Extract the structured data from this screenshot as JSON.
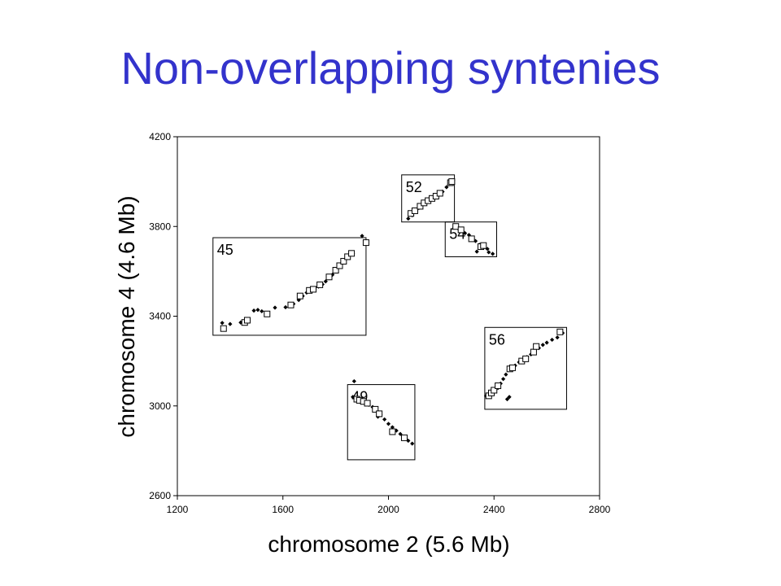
{
  "title": "Non-overlapping syntenies",
  "colors": {
    "title": "#3333cc",
    "axis": "#000000",
    "marker": "#000000"
  },
  "chart_data": {
    "type": "scatter",
    "xlabel": "chromosome 2 (5.6 Mb)",
    "ylabel": "chromosome 4 (4.6 Mb)",
    "xlim": [
      1200,
      2800
    ],
    "ylim": [
      2600,
      4200
    ],
    "xticks": [
      1200,
      1600,
      2000,
      2400,
      2800
    ],
    "yticks": [
      2600,
      3000,
      3400,
      3800,
      4200
    ],
    "grid": false,
    "legend": "none",
    "marker_styles": [
      "filled-diamond",
      "open-square"
    ],
    "blocks": [
      {
        "label": "45",
        "x_range": [
          1335,
          1915
        ],
        "y_range": [
          3315,
          3750
        ],
        "diamonds": [
          [
            1370,
            3370
          ],
          [
            1400,
            3365
          ],
          [
            1440,
            3372
          ],
          [
            1490,
            3425
          ],
          [
            1505,
            3428
          ],
          [
            1520,
            3422
          ],
          [
            1570,
            3438
          ],
          [
            1610,
            3440
          ],
          [
            1640,
            3455
          ],
          [
            1660,
            3472
          ],
          [
            1675,
            3490
          ],
          [
            1690,
            3505
          ],
          [
            1705,
            3515
          ],
          [
            1720,
            3520
          ],
          [
            1735,
            3532
          ],
          [
            1750,
            3542
          ],
          [
            1762,
            3555
          ],
          [
            1775,
            3570
          ],
          [
            1788,
            3585
          ],
          [
            1800,
            3605
          ],
          [
            1812,
            3622
          ],
          [
            1825,
            3640
          ],
          [
            1838,
            3655
          ],
          [
            1850,
            3668
          ],
          [
            1865,
            3680
          ],
          [
            1900,
            3758
          ]
        ],
        "squares": [
          [
            1375,
            3345
          ],
          [
            1455,
            3372
          ],
          [
            1465,
            3382
          ],
          [
            1540,
            3410
          ],
          [
            1630,
            3450
          ],
          [
            1665,
            3490
          ],
          [
            1700,
            3515
          ],
          [
            1715,
            3520
          ],
          [
            1740,
            3540
          ],
          [
            1775,
            3575
          ],
          [
            1800,
            3605
          ],
          [
            1815,
            3625
          ],
          [
            1830,
            3645
          ],
          [
            1845,
            3665
          ],
          [
            1860,
            3680
          ],
          [
            1915,
            3728
          ]
        ]
      },
      {
        "label": "52",
        "x_range": [
          2050,
          2250
        ],
        "y_range": [
          3820,
          4030
        ],
        "diamonds": [
          [
            2075,
            3835
          ],
          [
            2090,
            3850
          ],
          [
            2105,
            3868
          ],
          [
            2115,
            3882
          ],
          [
            2130,
            3898
          ],
          [
            2145,
            3912
          ],
          [
            2160,
            3920
          ],
          [
            2175,
            3930
          ],
          [
            2190,
            3940
          ],
          [
            2205,
            3955
          ],
          [
            2220,
            3975
          ],
          [
            2230,
            3988
          ],
          [
            2240,
            3995
          ],
          [
            2245,
            4005
          ]
        ],
        "squares": [
          [
            2085,
            3858
          ],
          [
            2100,
            3870
          ],
          [
            2120,
            3890
          ],
          [
            2135,
            3905
          ],
          [
            2150,
            3915
          ],
          [
            2165,
            3925
          ],
          [
            2180,
            3935
          ],
          [
            2195,
            3948
          ],
          [
            2235,
            3995
          ],
          [
            2240,
            4000
          ]
        ]
      },
      {
        "label": "54",
        "x_range": [
          2215,
          2410
        ],
        "y_range": [
          3665,
          3820
        ],
        "diamonds": [
          [
            2250,
            3795
          ],
          [
            2265,
            3790
          ],
          [
            2280,
            3780
          ],
          [
            2290,
            3770
          ],
          [
            2305,
            3762
          ],
          [
            2320,
            3745
          ],
          [
            2330,
            3735
          ],
          [
            2345,
            3718
          ],
          [
            2360,
            3705
          ],
          [
            2375,
            3700
          ],
          [
            2380,
            3685
          ],
          [
            2395,
            3678
          ],
          [
            2335,
            3688
          ]
        ],
        "squares": [
          [
            2255,
            3800
          ],
          [
            2275,
            3785
          ],
          [
            2315,
            3745
          ],
          [
            2350,
            3710
          ],
          [
            2360,
            3715
          ]
        ]
      },
      {
        "label": "56",
        "x_range": [
          2365,
          2675
        ],
        "y_range": [
          2985,
          3350
        ],
        "diamonds": [
          [
            2370,
            3045
          ],
          [
            2385,
            3050
          ],
          [
            2395,
            3060
          ],
          [
            2405,
            3070
          ],
          [
            2415,
            3080
          ],
          [
            2425,
            3100
          ],
          [
            2435,
            3120
          ],
          [
            2445,
            3140
          ],
          [
            2455,
            3160
          ],
          [
            2465,
            3175
          ],
          [
            2480,
            3180
          ],
          [
            2495,
            3195
          ],
          [
            2510,
            3205
          ],
          [
            2525,
            3218
          ],
          [
            2540,
            3230
          ],
          [
            2555,
            3245
          ],
          [
            2570,
            3258
          ],
          [
            2585,
            3272
          ],
          [
            2600,
            3282
          ],
          [
            2620,
            3295
          ],
          [
            2640,
            3305
          ],
          [
            2660,
            3325
          ],
          [
            2450,
            3030
          ],
          [
            2458,
            3040
          ]
        ],
        "squares": [
          [
            2380,
            3045
          ],
          [
            2390,
            3058
          ],
          [
            2400,
            3070
          ],
          [
            2415,
            3090
          ],
          [
            2460,
            3165
          ],
          [
            2470,
            3170
          ],
          [
            2505,
            3200
          ],
          [
            2520,
            3210
          ],
          [
            2550,
            3240
          ],
          [
            2560,
            3265
          ],
          [
            2650,
            3330
          ]
        ]
      },
      {
        "label": "49",
        "x_range": [
          1845,
          2100
        ],
        "y_range": [
          2760,
          3095
        ],
        "diamonds": [
          [
            1865,
            3040
          ],
          [
            1880,
            3035
          ],
          [
            1895,
            3025
          ],
          [
            1910,
            3015
          ],
          [
            1925,
            3005
          ],
          [
            1940,
            2995
          ],
          [
            1955,
            2980
          ],
          [
            1970,
            2960
          ],
          [
            1985,
            2940
          ],
          [
            2000,
            2920
          ],
          [
            2015,
            2905
          ],
          [
            2030,
            2890
          ],
          [
            2045,
            2875
          ],
          [
            2060,
            2855
          ],
          [
            2075,
            2845
          ],
          [
            2090,
            2832
          ],
          [
            1870,
            3110
          ],
          [
            1960,
            2952
          ]
        ],
        "squares": [
          [
            1880,
            3030
          ],
          [
            1890,
            3025
          ],
          [
            1905,
            3020
          ],
          [
            1920,
            3012
          ],
          [
            1950,
            2985
          ],
          [
            1965,
            2965
          ],
          [
            2015,
            2885
          ],
          [
            2060,
            2858
          ]
        ]
      }
    ]
  }
}
